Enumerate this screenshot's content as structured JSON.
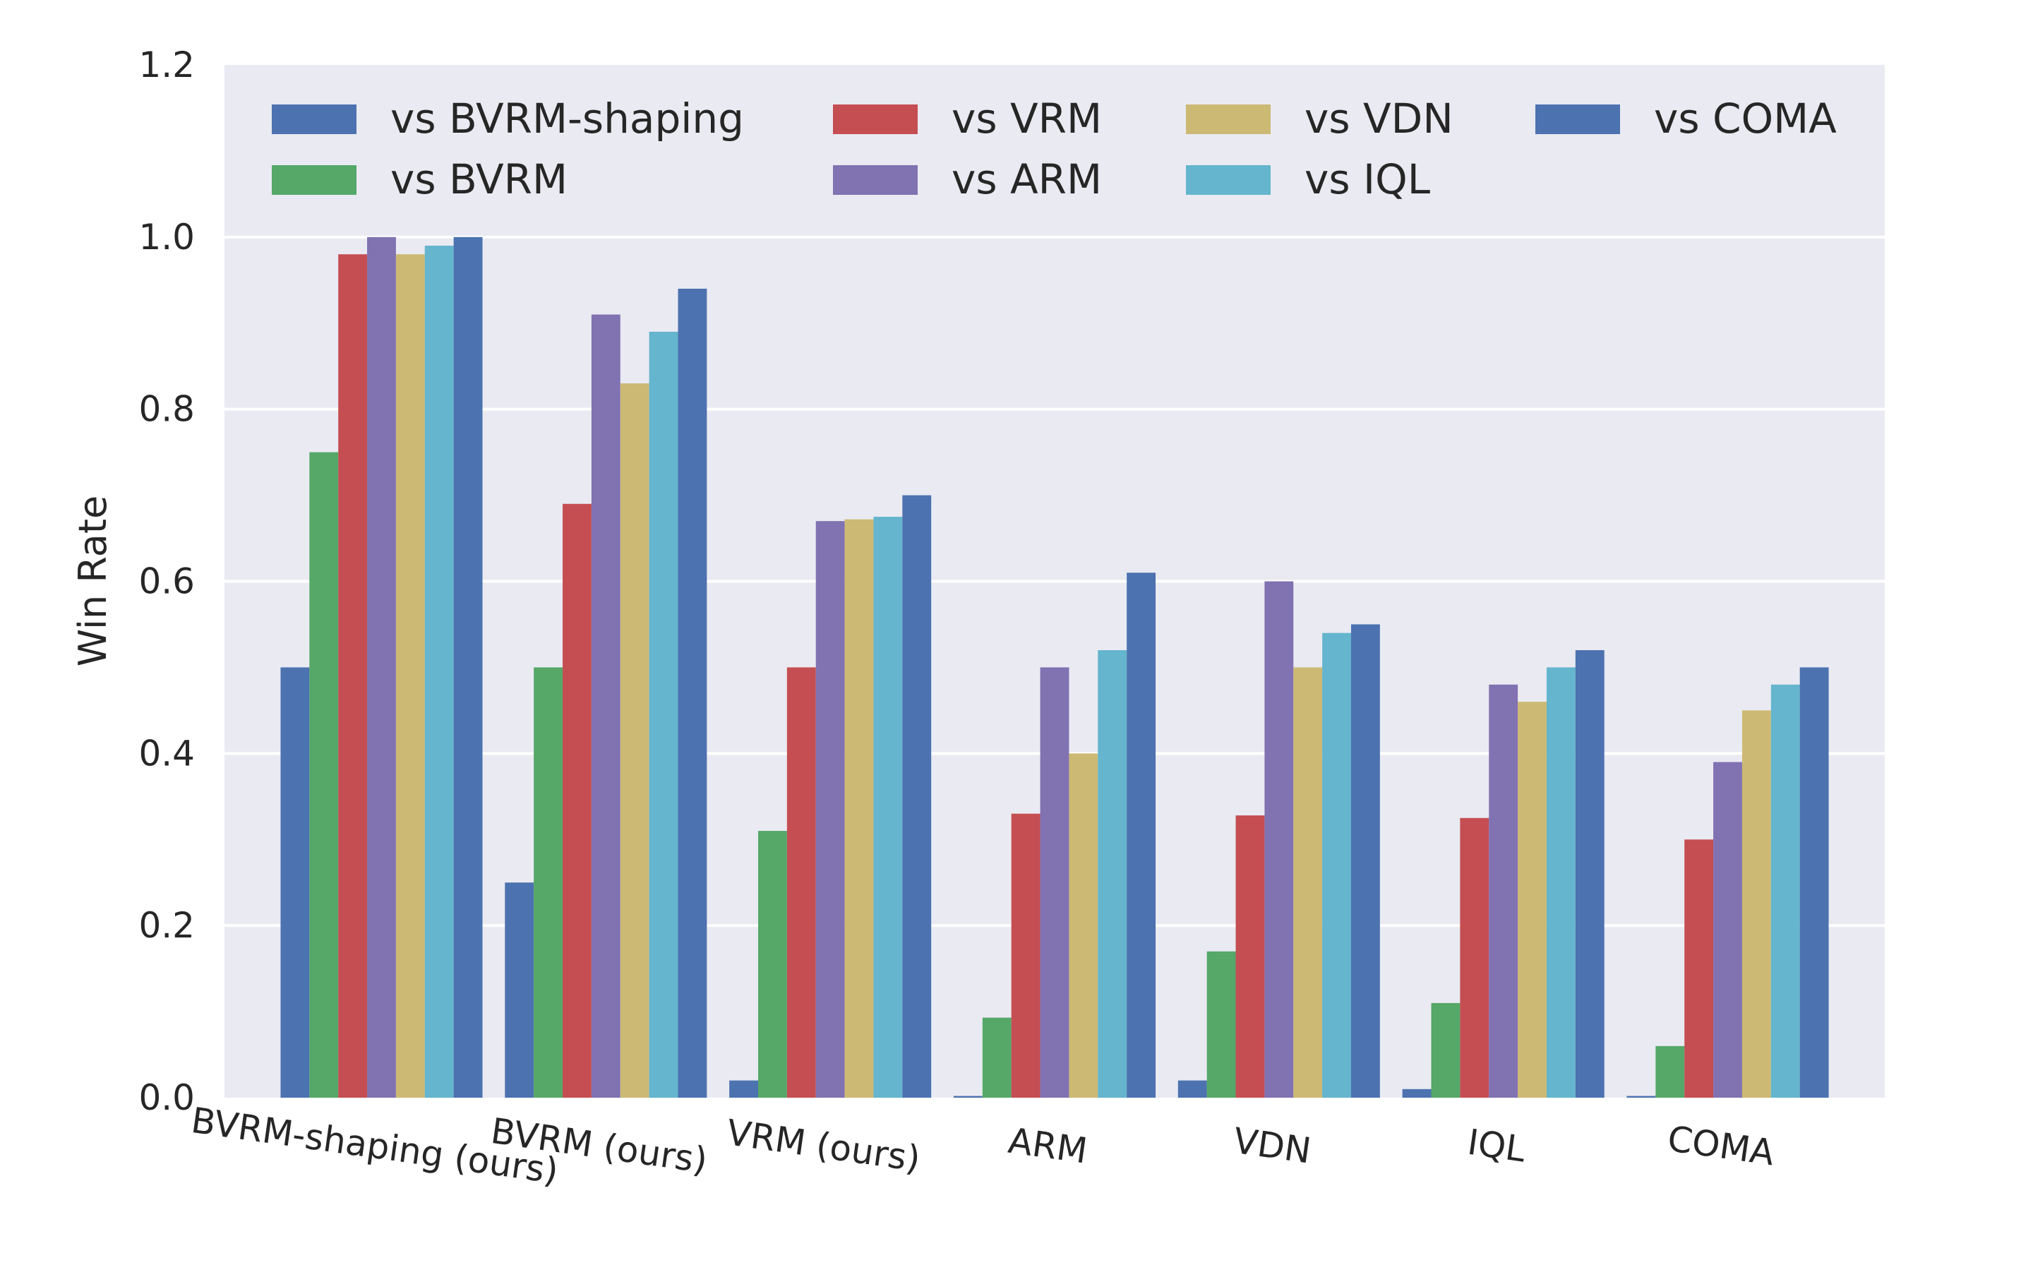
{
  "chart_data": {
    "type": "bar",
    "title": "",
    "xlabel": "",
    "ylabel": "Win Rate",
    "ylim": [
      0,
      1.2
    ],
    "yticks": [
      "0.0",
      "0.2",
      "0.4",
      "0.6",
      "0.8",
      "1.0",
      "1.2"
    ],
    "grid": true,
    "legend_position": "top",
    "categories": [
      "BVRM-shaping (ours)",
      "BVRM (ours)",
      "VRM (ours)",
      "ARM",
      "VDN",
      "IQL",
      "COMA"
    ],
    "series": [
      {
        "name": "vs BVRM-shaping",
        "color": "#4c72b0",
        "values": [
          0.5,
          0.25,
          0.02,
          0.002,
          0.02,
          0.01,
          0.002
        ]
      },
      {
        "name": "vs BVRM",
        "color": "#55a868",
        "values": [
          0.75,
          0.5,
          0.31,
          0.093,
          0.17,
          0.11,
          0.06
        ]
      },
      {
        "name": "vs VRM",
        "color": "#c44e52",
        "values": [
          0.98,
          0.69,
          0.5,
          0.33,
          0.328,
          0.325,
          0.3
        ]
      },
      {
        "name": "vs ARM",
        "color": "#8172b2",
        "values": [
          1.0,
          0.91,
          0.67,
          0.5,
          0.6,
          0.48,
          0.39
        ]
      },
      {
        "name": "vs VDN",
        "color": "#ccb974",
        "values": [
          0.98,
          0.83,
          0.672,
          0.4,
          0.5,
          0.46,
          0.45
        ]
      },
      {
        "name": "vs IQL",
        "color": "#64b5cd",
        "values": [
          0.99,
          0.89,
          0.675,
          0.52,
          0.54,
          0.5,
          0.48
        ]
      },
      {
        "name": "vs COMA",
        "color": "#4c72b0",
        "values": [
          1.0,
          0.94,
          0.7,
          0.61,
          0.55,
          0.52,
          0.5
        ]
      }
    ]
  }
}
